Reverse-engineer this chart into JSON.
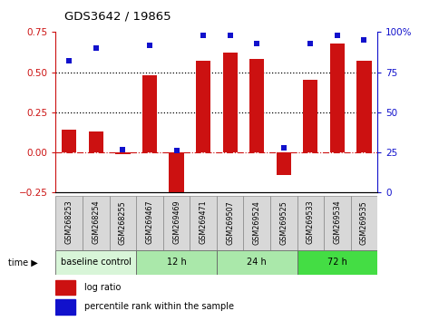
{
  "title": "GDS3642 / 19865",
  "samples": [
    "GSM268253",
    "GSM268254",
    "GSM268255",
    "GSM269467",
    "GSM269469",
    "GSM269471",
    "GSM269507",
    "GSM269524",
    "GSM269525",
    "GSM269533",
    "GSM269534",
    "GSM269535"
  ],
  "log_ratio": [
    0.14,
    0.13,
    -0.01,
    0.48,
    -0.28,
    0.57,
    0.62,
    0.58,
    -0.14,
    0.45,
    0.68,
    0.57
  ],
  "percentile_rank": [
    82,
    90,
    27,
    92,
    26,
    98,
    98,
    93,
    28,
    93,
    98,
    95
  ],
  "bar_color": "#CC1111",
  "dot_color": "#1111CC",
  "ylim_left": [
    -0.25,
    0.75
  ],
  "ylim_right": [
    0,
    100
  ],
  "yticks_left": [
    -0.25,
    0,
    0.25,
    0.5,
    0.75
  ],
  "yticks_right": [
    0,
    25,
    50,
    75,
    100
  ],
  "ytick_right_labels": [
    "0",
    "25",
    "50",
    "75",
    "100%"
  ],
  "hlines": [
    0.25,
    0.5
  ],
  "zero_line_color": "#CC1111",
  "groups": [
    {
      "label": "baseline control",
      "start": 0,
      "end": 3,
      "color": "#d8f5d8"
    },
    {
      "label": "12 h",
      "start": 3,
      "end": 6,
      "color": "#aae8aa"
    },
    {
      "label": "24 h",
      "start": 6,
      "end": 9,
      "color": "#aae8aa"
    },
    {
      "label": "72 h",
      "start": 9,
      "end": 12,
      "color": "#44dd44"
    }
  ],
  "legend_items": [
    {
      "label": "log ratio",
      "color": "#CC1111"
    },
    {
      "label": "percentile rank within the sample",
      "color": "#1111CC"
    }
  ],
  "fig_width": 4.73,
  "fig_height": 3.54
}
